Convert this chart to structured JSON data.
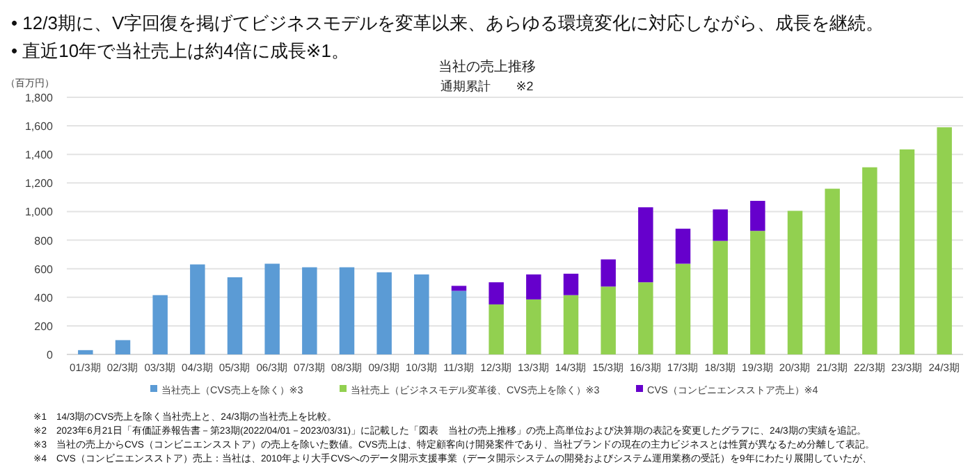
{
  "chart_data": {
    "type": "bar",
    "title": "当社の売上推移",
    "subtitle": "通期累計　　※2",
    "ylabel": "（百万円）",
    "annotations": [
      "•  12/3期に、V字回復を掲げてビジネスモデルを変革以来、あらゆる環境変化に対応しながら、成長を継続。",
      "•  直近10年で当社売上は約4倍に成長※1。",
      "※1　14/3期のCVS売上を除く当社売上と、24/3期の当社売上を比較。",
      "※2　2023年6月21日「有価証券報告書－第23期(2022/04/01－2023/03/31)」に記載した「図表　当社の売上推移」の売上高単位および決算期の表記を変更したグラフに、24/3期の実績を追記。",
      "※3　当社の売上からCVS（コンビニエンスストア）の売上を除いた数値。CVS売上は、特定顧客向け開発案件であり、当社ブランドの現在の主力ビジネスとは性質が異なるため分離して表記。",
      "※4　CVS（コンビニエンスストア）売上：当社は、2010年より大手CVSへのデータ開示支援事業（データ開示システムの開発およびシステム運用業務の受託）を9年にわたり展開していたが、"
    ],
    "categories": [
      "01/3期",
      "02/3期",
      "03/3期",
      "04/3期",
      "05/3期",
      "06/3期",
      "07/3期",
      "08/3期",
      "09/3期",
      "10/3期",
      "11/3期",
      "12/3期",
      "13/3期",
      "14/3期",
      "15/3期",
      "16/3期",
      "17/3期",
      "18/3期",
      "19/3期",
      "20/3期",
      "21/3期",
      "22/3期",
      "23/3期",
      "24/3期"
    ],
    "stacked": true,
    "series": [
      {
        "name": "当社売上（CVS売上を除く）※3",
        "color": "#5b9bd5",
        "values": [
          30,
          100,
          415,
          630,
          540,
          635,
          610,
          610,
          575,
          560,
          445,
          null,
          null,
          null,
          null,
          null,
          null,
          null,
          null,
          null,
          null,
          null,
          null,
          null
        ]
      },
      {
        "name": "当社売上（ビジネスモデル変革後、CVS売上を除く）※3",
        "color": "#92d050",
        "values": [
          null,
          null,
          null,
          null,
          null,
          null,
          null,
          null,
          null,
          null,
          null,
          350,
          385,
          415,
          475,
          505,
          635,
          795,
          865,
          1005,
          1160,
          1310,
          1435,
          1590
        ]
      },
      {
        "name": "CVS（コンビニエンスストア売上）※4",
        "color": "#6600cc",
        "values": [
          null,
          null,
          null,
          null,
          null,
          null,
          null,
          null,
          null,
          null,
          35,
          155,
          175,
          150,
          190,
          525,
          245,
          220,
          210,
          null,
          null,
          null,
          null,
          null
        ]
      }
    ],
    "ylim": [
      0,
      1800
    ],
    "yticks": [
      {
        "value": 0,
        "label": "0"
      },
      {
        "value": 200,
        "label": "200"
      },
      {
        "value": 400,
        "label": "400"
      },
      {
        "value": 600,
        "label": "600"
      },
      {
        "value": 800,
        "label": "800"
      },
      {
        "value": 1000,
        "label": "1,000"
      },
      {
        "value": 1200,
        "label": "1,200"
      },
      {
        "value": 1400,
        "label": "1,400"
      },
      {
        "value": 1600,
        "label": "1,600"
      },
      {
        "value": 1800,
        "label": "1,800"
      }
    ],
    "grid": "y",
    "legend": "bottom"
  }
}
